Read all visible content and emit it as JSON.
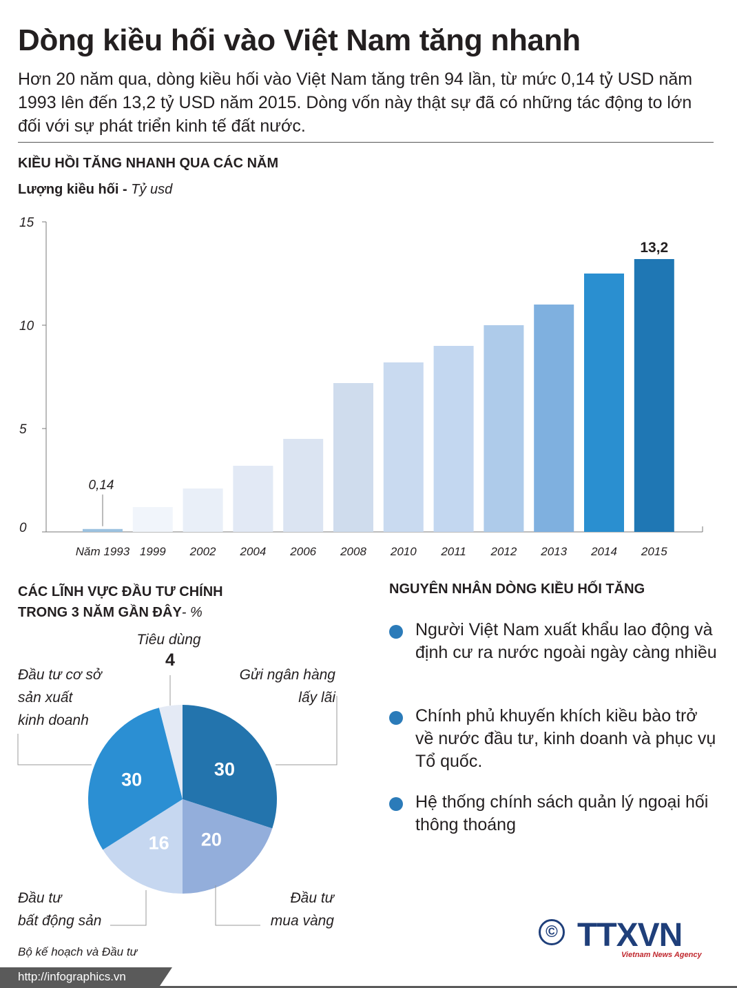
{
  "header": {
    "title": "Dòng kiều hối vào Việt Nam tăng nhanh",
    "intro": "Hơn 20 năm qua, dòng kiều hối vào Việt Nam tăng trên 94 lần, từ mức 0,14 tỷ USD năm 1993 lên đến 13,2 tỷ USD năm 2015. Dòng vốn này thật sự đã có những tác động to lớn đối với sự phát triển kinh tế đất nước."
  },
  "bar_section": {
    "heading": "KIỀU HỒI TĂNG NHANH QUA CÁC NĂM",
    "unit_label": "Lượng kiều hối",
    "unit_sep": " - ",
    "unit": "Tỷ usd"
  },
  "pie_section": {
    "heading_line1": "CÁC LĨNH VỰC ĐẦU TƯ CHÍNH",
    "heading_line2": "TRONG 3 NĂM GẦN ĐÂY",
    "heading_unit": "- %"
  },
  "reasons_section": {
    "heading": "NGUYÊN NHÂN DÒNG KIỀU HỐI TĂNG",
    "items": [
      "Người Việt Nam xuất khẩu lao động và định cư ra nước ngoài ngày càng nhiều",
      "Chính phủ khuyến khích kiều bào trở về nước đầu tư, kinh doanh và phục vụ Tổ quốc.",
      "Hệ thống chính sách quản lý ngoại hối thông thoáng"
    ]
  },
  "footer": {
    "source": "Bộ kế hoạch và Đầu tư",
    "url": "http://infographics.vn",
    "copyright": "©",
    "logo": "TTXVN",
    "logo_sub": "Vietnam News Agency"
  },
  "colors": {
    "accent": "#2b7bb9",
    "text": "#231f20",
    "dark_bar": "#1f77b4"
  },
  "chart_data": [
    {
      "type": "bar",
      "categories": [
        "Năm 1993",
        "1999",
        "2002",
        "2004",
        "2006",
        "2008",
        "2010",
        "2011",
        "2012",
        "2013",
        "2014",
        "2015"
      ],
      "values": [
        0.14,
        1.2,
        2.1,
        3.2,
        4.5,
        7.2,
        8.2,
        9.0,
        10.0,
        11.0,
        12.5,
        13.2
      ],
      "colors": [
        "#9cc2e0",
        "#f1f5fb",
        "#e9eff8",
        "#e2e9f5",
        "#dbe4f2",
        "#cfdced",
        "#c9daf0",
        "#c3d7f0",
        "#aecbea",
        "#7fb0df",
        "#2a8fd0",
        "#1f77b4"
      ],
      "data_labels": [
        {
          "index": 0,
          "text": "0,14"
        },
        {
          "index": 11,
          "text": "13,2"
        }
      ],
      "yticks": [
        0,
        5,
        10,
        15
      ],
      "ytick_labels": [
        "0",
        "5",
        "10",
        "15"
      ],
      "ylim": [
        0,
        15
      ],
      "title": "KIỀU HỒI TĂNG NHANH QUA CÁC NĂM",
      "ylabel": "Lượng kiều hối - Tỷ usd",
      "xlabel": "",
      "grid": false
    },
    {
      "type": "pie",
      "title": "CÁC LĨNH VỰC ĐẦU TƯ CHÍNH TRONG 3 NĂM GẦN ĐÂY- %",
      "slices": [
        {
          "label_lines": [
            "Gửi ngân hàng",
            "lấy lãi"
          ],
          "value": 30,
          "color": "#2374ad"
        },
        {
          "label_lines": [
            "Đầu tư",
            "mua vàng"
          ],
          "value": 20,
          "color": "#93aedb"
        },
        {
          "label_lines": [
            "Đầu tư",
            "bất động sản"
          ],
          "value": 16,
          "color": "#c6d7f0"
        },
        {
          "label_lines": [
            "Đầu tư cơ sở",
            "sản xuất",
            "kinh doanh"
          ],
          "value": 30,
          "color": "#2b8fd3"
        },
        {
          "label_lines": [
            "Tiêu dùng"
          ],
          "value": 4,
          "color": "#e4eaf5"
        }
      ]
    }
  ]
}
